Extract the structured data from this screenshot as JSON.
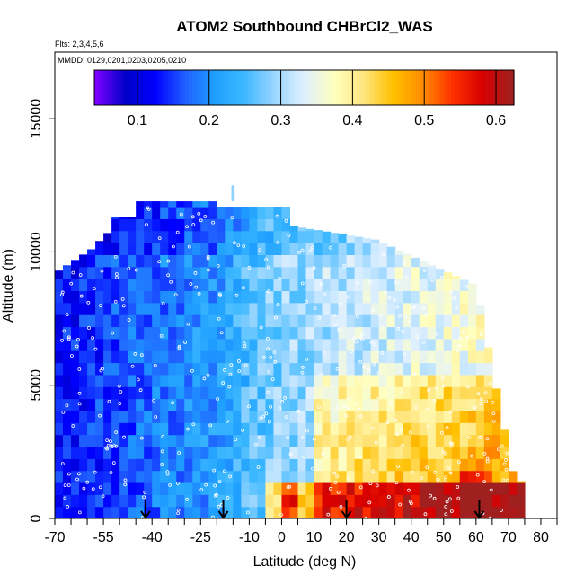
{
  "chart_data": {
    "type": "heatmap",
    "title": "ATOM2 Southbound CHBrCl2_WAS",
    "subtitle_flights": "Flts: 2,3,4,5,6",
    "subtitle_dates": "MMDD: 0129,0201,0203,0205,0210",
    "xlabel": "Latitude (deg N)",
    "ylabel": "Altitude (m)",
    "xlim": [
      -70,
      85
    ],
    "ylim": [
      0,
      17500
    ],
    "x_ticks": [
      -70,
      -55,
      -40,
      -25,
      -10,
      0,
      10,
      20,
      30,
      40,
      50,
      60,
      70,
      80
    ],
    "x_tick_labels": [
      "-70",
      "-55",
      "-40",
      "-25",
      "-10",
      "0",
      "10",
      "20",
      "30",
      "40",
      "50",
      "60",
      "70",
      "80"
    ],
    "y_ticks": [
      0,
      5000,
      10000,
      15000
    ],
    "y_tick_labels": [
      "0",
      "5000",
      "10000",
      "15000"
    ],
    "colorbar": {
      "min": 0.04,
      "max": 0.625,
      "ticks": [
        0.1,
        0.2,
        0.3,
        0.4,
        0.5,
        0.6
      ],
      "tick_labels": [
        "0.1",
        "0.2",
        "0.3",
        "0.4",
        "0.5",
        "0.6"
      ],
      "colors": [
        "#7a00ff",
        "#0000c8",
        "#0000ff",
        "#2060ff",
        "#1f9fff",
        "#3cb8ff",
        "#9ad6ff",
        "#dff0ff",
        "#ffffc0",
        "#ffe680",
        "#ffc000",
        "#ff8c00",
        "#ff3000",
        "#d80000",
        "#a02020"
      ]
    },
    "arrow_latitudes": [
      -42,
      -18,
      20,
      61
    ],
    "grid": false,
    "description_legend": "none"
  }
}
